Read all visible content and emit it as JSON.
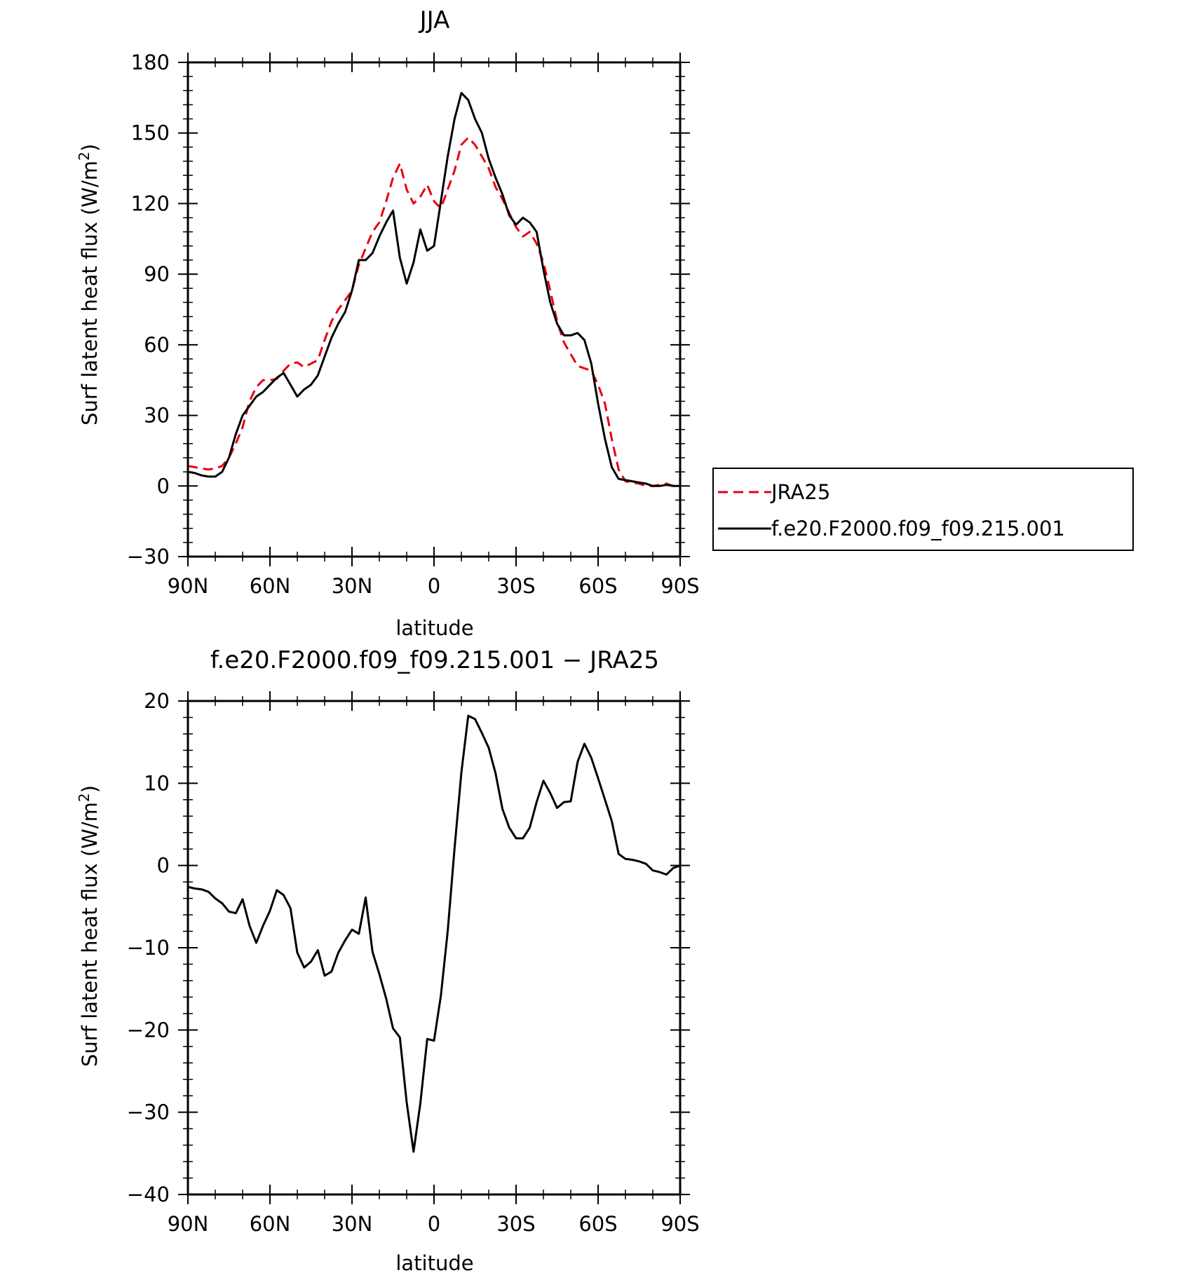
{
  "chart_data": [
    {
      "type": "line",
      "title": "JJA",
      "xlabel": "latitude",
      "ylabel": "Surf latent heat flux (W/m²)",
      "ylabel_main": "Surf latent heat flux (W/m",
      "ylabel_sup": "2",
      "ylabel_close": ")",
      "xlim": [
        90,
        -90
      ],
      "ylim": [
        -30,
        180
      ],
      "yticks": [
        -30,
        0,
        30,
        60,
        90,
        120,
        150,
        180
      ],
      "ytick_labels": [
        "−30",
        "0",
        "30",
        "60",
        "90",
        "120",
        "150",
        "180"
      ],
      "xticks": [
        90,
        60,
        30,
        0,
        -30,
        -60,
        -90
      ],
      "xtick_labels": [
        "90N",
        "60N",
        "30N",
        "0",
        "30S",
        "60S",
        "90S"
      ],
      "legend": {
        "placement": "right",
        "entries": [
          "JRA25",
          "f.e20.F2000.f09_f09.215.001"
        ]
      },
      "series": [
        {
          "name": "JRA25",
          "color": "#e8000b",
          "dash": "dashed",
          "x": [
            90,
            87.5,
            85,
            82.5,
            80,
            77.5,
            75,
            72.5,
            70,
            67.5,
            65,
            62.5,
            60,
            57.5,
            55,
            52.5,
            50,
            47.5,
            45,
            42.5,
            40,
            37.5,
            35,
            32.5,
            30,
            27.5,
            25,
            22.5,
            20,
            17.5,
            15,
            12.5,
            10,
            7.5,
            5,
            2.5,
            0,
            -2.5,
            -5,
            -7.5,
            -10,
            -12.5,
            -15,
            -17.5,
            -20,
            -22.5,
            -25,
            -27.5,
            -30,
            -32.5,
            -35,
            -37.5,
            -40,
            -42.5,
            -45,
            -47.5,
            -50,
            -52.5,
            -55,
            -57.5,
            -60,
            -62.5,
            -65,
            -67.5,
            -70,
            -72.5,
            -75,
            -77.5,
            -80,
            -82.5,
            -85,
            -87.5,
            -90
          ],
          "y": [
            8.5,
            8,
            7.5,
            7,
            7.5,
            8.5,
            12,
            18,
            25,
            36,
            42,
            45,
            45,
            45.5,
            49,
            52,
            52.5,
            50.5,
            52,
            53.5,
            62,
            70,
            75,
            79,
            83,
            94,
            101,
            108,
            112,
            121,
            131,
            137,
            126,
            120,
            123,
            128,
            121,
            118,
            126,
            134,
            145,
            148,
            145,
            140,
            135,
            127,
            122,
            116,
            110,
            106,
            108,
            103,
            95,
            83,
            70,
            61,
            56,
            51,
            50,
            49,
            43,
            35,
            20,
            7,
            2,
            1.5,
            1,
            0,
            0,
            0.5,
            1,
            0,
            0
          ]
        },
        {
          "name": "f.e20.F2000.f09_f09.215.001",
          "color": "#000000",
          "dash": "solid",
          "x": [
            90,
            87.5,
            85,
            82.5,
            80,
            77.5,
            75,
            72.5,
            70,
            67.5,
            65,
            62.5,
            60,
            57.5,
            55,
            52.5,
            50,
            47.5,
            45,
            42.5,
            40,
            37.5,
            35,
            32.5,
            30,
            27.5,
            25,
            22.5,
            20,
            17.5,
            15,
            12.5,
            10,
            7.5,
            5,
            2.5,
            0,
            -2.5,
            -5,
            -7.5,
            -10,
            -12.5,
            -15,
            -17.5,
            -20,
            -22.5,
            -25,
            -27.5,
            -30,
            -32.5,
            -35,
            -37.5,
            -40,
            -42.5,
            -45,
            -47.5,
            -50,
            -52.5,
            -55,
            -57.5,
            -60,
            -62.5,
            -65,
            -67.5,
            -70,
            -72.5,
            -75,
            -77.5,
            -80,
            -82.5,
            -85,
            -87.5,
            -90
          ],
          "y": [
            6,
            5.5,
            4.5,
            4,
            4,
            6,
            12,
            22,
            30,
            34,
            38,
            40,
            43,
            46,
            48,
            43,
            38,
            41,
            43,
            47,
            55,
            63,
            69,
            74,
            83,
            96,
            96,
            99,
            106,
            112,
            117,
            97,
            86,
            95,
            109,
            100,
            102,
            121,
            140,
            156,
            167,
            164,
            156,
            150,
            139,
            131,
            124,
            115,
            111,
            114,
            112,
            108,
            92,
            78,
            69,
            64,
            64,
            65,
            62,
            52,
            35,
            20,
            8,
            3,
            2.5,
            2,
            1.5,
            1,
            0,
            0,
            0.5,
            0,
            0
          ]
        }
      ]
    },
    {
      "type": "line",
      "title": "f.e20.F2000.f09_f09.215.001 − JRA25",
      "xlabel": "latitude",
      "ylabel": "Surf latent heat flux (W/m²)",
      "ylabel_main": "Surf latent heat flux (W/m",
      "ylabel_sup": "2",
      "ylabel_close": ")",
      "xlim": [
        90,
        -90
      ],
      "ylim": [
        -40,
        20
      ],
      "yticks": [
        -40,
        -30,
        -20,
        -10,
        0,
        10,
        20
      ],
      "ytick_labels": [
        "−40",
        "−30",
        "−20",
        "−10",
        "0",
        "10",
        "20"
      ],
      "xticks": [
        90,
        60,
        30,
        0,
        -30,
        -60,
        -90
      ],
      "xtick_labels": [
        "90N",
        "60N",
        "30N",
        "0",
        "30S",
        "60S",
        "90S"
      ],
      "series": [
        {
          "name": "f.e20.F2000.f09_f09.215.001 − JRA25",
          "color": "#000000",
          "dash": "solid",
          "x": [
            90,
            87.5,
            85,
            82.5,
            80,
            77.5,
            75,
            72.5,
            70,
            67.5,
            65,
            62.5,
            60,
            57.5,
            55,
            52.5,
            50,
            47.5,
            45,
            42.5,
            40,
            37.5,
            35,
            32.5,
            30,
            27.5,
            25,
            22.5,
            20,
            17.5,
            15,
            12.5,
            10,
            7.5,
            5,
            2.5,
            0,
            -2.5,
            -5,
            -7.5,
            -10,
            -12.5,
            -15,
            -17.5,
            -20,
            -22.5,
            -25,
            -27.5,
            -30,
            -32.5,
            -35,
            -37.5,
            -40,
            -42.5,
            -45,
            -47.5,
            -50,
            -52.5,
            -55,
            -57.5,
            -60,
            -62.5,
            -65,
            -67.5,
            -70,
            -72.5,
            -75,
            -77.5,
            -80,
            -82.5,
            -85,
            -87.5,
            -90
          ],
          "y": [
            -2.6,
            -2.8,
            -2.9,
            -3.2,
            -4,
            -4.6,
            -5.6,
            -5.8,
            -4.1,
            -7.3,
            -9.4,
            -7.3,
            -5.5,
            -3,
            -3.6,
            -5.2,
            -10.6,
            -12.4,
            -11.7,
            -10.3,
            -13.4,
            -12.9,
            -10.6,
            -9.1,
            -7.8,
            -8.3,
            -3.9,
            -10.5,
            -13.2,
            -16.2,
            -19.8,
            -20.9,
            -28.8,
            -34.8,
            -28.9,
            -21.1,
            -21.3,
            -15.8,
            -8,
            2.1,
            11.3,
            18.2,
            17.8,
            16.1,
            14.3,
            11.2,
            6.9,
            4.6,
            3.3,
            3.3,
            4.6,
            7.7,
            10.3,
            8.8,
            7,
            7.7,
            7.8,
            12.6,
            14.8,
            13.1,
            10.6,
            8,
            5.4,
            1.4,
            0.8,
            0.7,
            0.5,
            0.2,
            -0.6,
            -0.8,
            -1.1,
            -0.3,
            0
          ]
        }
      ]
    }
  ]
}
